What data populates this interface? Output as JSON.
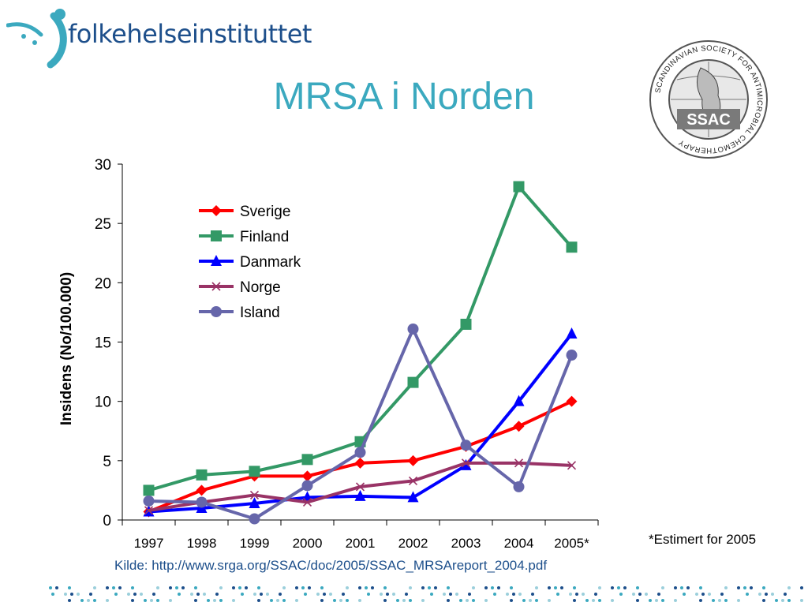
{
  "header": {
    "brand_text": "folkehelseinstituttet",
    "slide_title": "MRSA i Norden",
    "seal_top_text": "SCANDINAVIAN SOCIETY FOR ANTIMICROBIAL CHEMOTHERAPY",
    "seal_center_text": "SSAC"
  },
  "footer": {
    "note": "*Estimert for 2005",
    "source": "Kilde: http://www.srga.org/SSAC/doc/2005/SSAC_MRSAreport_2004.pdf"
  },
  "colors": {
    "title": "#3ba9bf",
    "brand": "#1d4f8b",
    "accent": "#3ba9bf"
  },
  "chart_data": {
    "type": "line",
    "title": "",
    "xlabel": "",
    "ylabel": "Insidens (No/100.000)",
    "categories": [
      "1997",
      "1998",
      "1999",
      "2000",
      "2001",
      "2002",
      "2003",
      "2004",
      "2005*"
    ],
    "ylim": [
      0,
      30
    ],
    "yticks": [
      0,
      5,
      10,
      15,
      20,
      25,
      30
    ],
    "grid": false,
    "legend_position": "top-left",
    "series": [
      {
        "name": "Sverige",
        "color": "#ff0000",
        "marker": "diamond",
        "values": [
          0.7,
          2.5,
          3.7,
          3.7,
          4.8,
          5.0,
          6.2,
          7.9,
          10.0
        ]
      },
      {
        "name": "Finland",
        "color": "#339966",
        "marker": "square",
        "values": [
          2.5,
          3.8,
          4.1,
          5.1,
          6.6,
          11.6,
          16.5,
          28.1,
          23.0
        ]
      },
      {
        "name": "Danmark",
        "color": "#0000ff",
        "marker": "triangle",
        "values": [
          0.7,
          1.0,
          1.4,
          1.9,
          2.0,
          1.9,
          4.6,
          10.0,
          15.7
        ]
      },
      {
        "name": "Norge",
        "color": "#993366",
        "marker": "x",
        "values": [
          0.8,
          1.5,
          2.1,
          1.5,
          2.8,
          3.3,
          4.8,
          4.8,
          4.6
        ]
      },
      {
        "name": "Island",
        "color": "#6666aa",
        "marker": "circle",
        "values": [
          1.6,
          1.5,
          0.1,
          2.9,
          5.7,
          16.1,
          6.3,
          2.8,
          13.9
        ]
      }
    ]
  }
}
